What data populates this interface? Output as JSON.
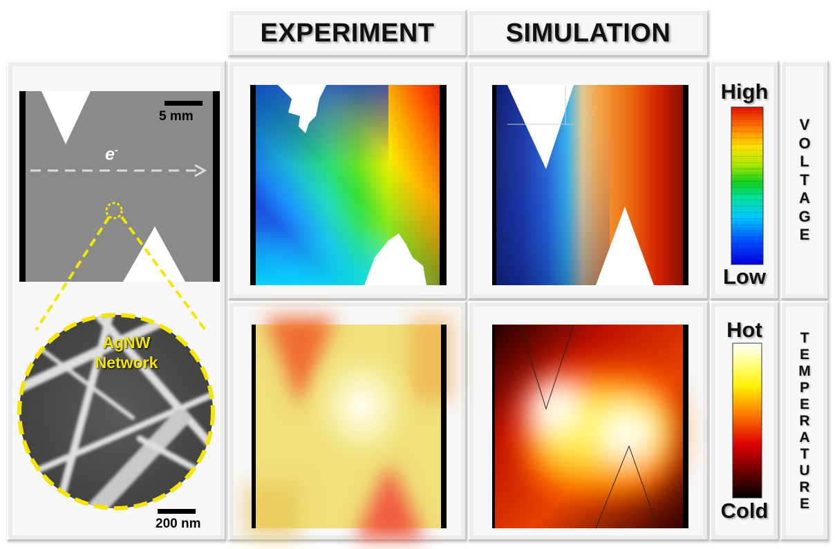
{
  "headers": {
    "experiment": "EXPERIMENT",
    "simulation": "SIMULATION"
  },
  "sample": {
    "scale_top": "5 mm",
    "electron_label": "e",
    "electron_sup": "-",
    "inset_label_line1": "AgNW",
    "inset_label_line2": "Network",
    "scale_bottom": "200 nm"
  },
  "voltage_colorbar": {
    "high_label": "High",
    "low_label": "Low",
    "side_label": [
      "V",
      "O",
      "L",
      "T",
      "A",
      "G",
      "E"
    ]
  },
  "temperature_colorbar": {
    "hot_label": "Hot",
    "cold_label": "Cold",
    "side_label": [
      "T",
      "E",
      "M",
      "P",
      "E",
      "R",
      "A",
      "T",
      "U",
      "R",
      "E"
    ]
  },
  "colors": {
    "highlight_yellow": "#f4e600",
    "sample_gray": "#8a8a8a"
  }
}
